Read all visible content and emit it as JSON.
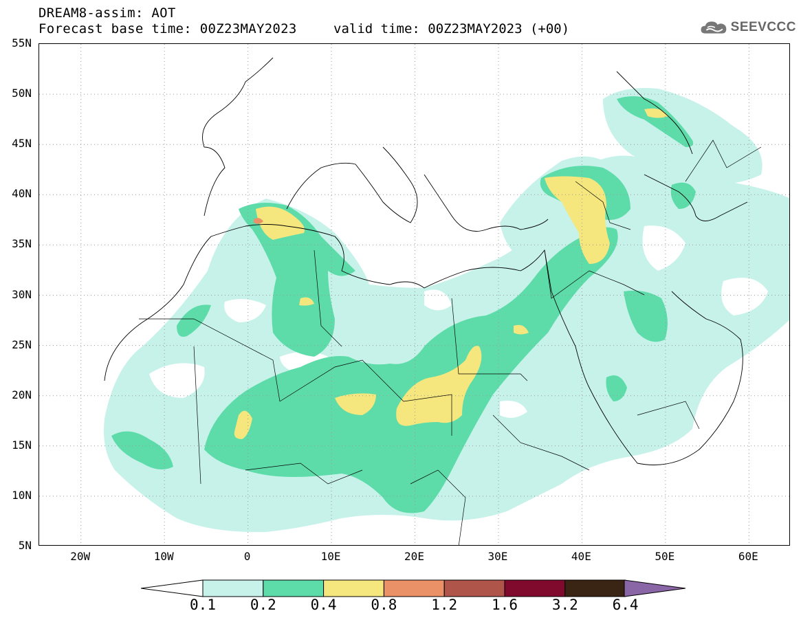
{
  "header": {
    "title": "DREAM8-assim: AOT",
    "base_time": "Forecast base time: 00Z23MAY2023",
    "valid_time": "valid time: 00Z23MAY2023 (+00)",
    "logo_text": "SEEVCCC",
    "logo_icon": "cloud-logo-icon"
  },
  "map": {
    "lon_range": [
      -25,
      65
    ],
    "lat_range": [
      5,
      55
    ],
    "lat_labels": [
      "55N",
      "50N",
      "45N",
      "40N",
      "35N",
      "30N",
      "25N",
      "20N",
      "15N",
      "10N",
      "5N"
    ],
    "lon_labels": [
      "20W",
      "10W",
      "0",
      "10E",
      "20E",
      "30E",
      "40E",
      "50E",
      "60E"
    ],
    "grid": "dotted"
  },
  "colorbar": {
    "levels": [
      "0.1",
      "0.2",
      "0.4",
      "0.8",
      "1.2",
      "1.6",
      "3.2",
      "6.4"
    ],
    "colors": [
      "#c6f2ea",
      "#5ddcaa",
      "#f5e77d",
      "#ea9167",
      "#b0554a",
      "#7f0a2e",
      "#3a2414",
      "#8b66a6"
    ]
  }
}
